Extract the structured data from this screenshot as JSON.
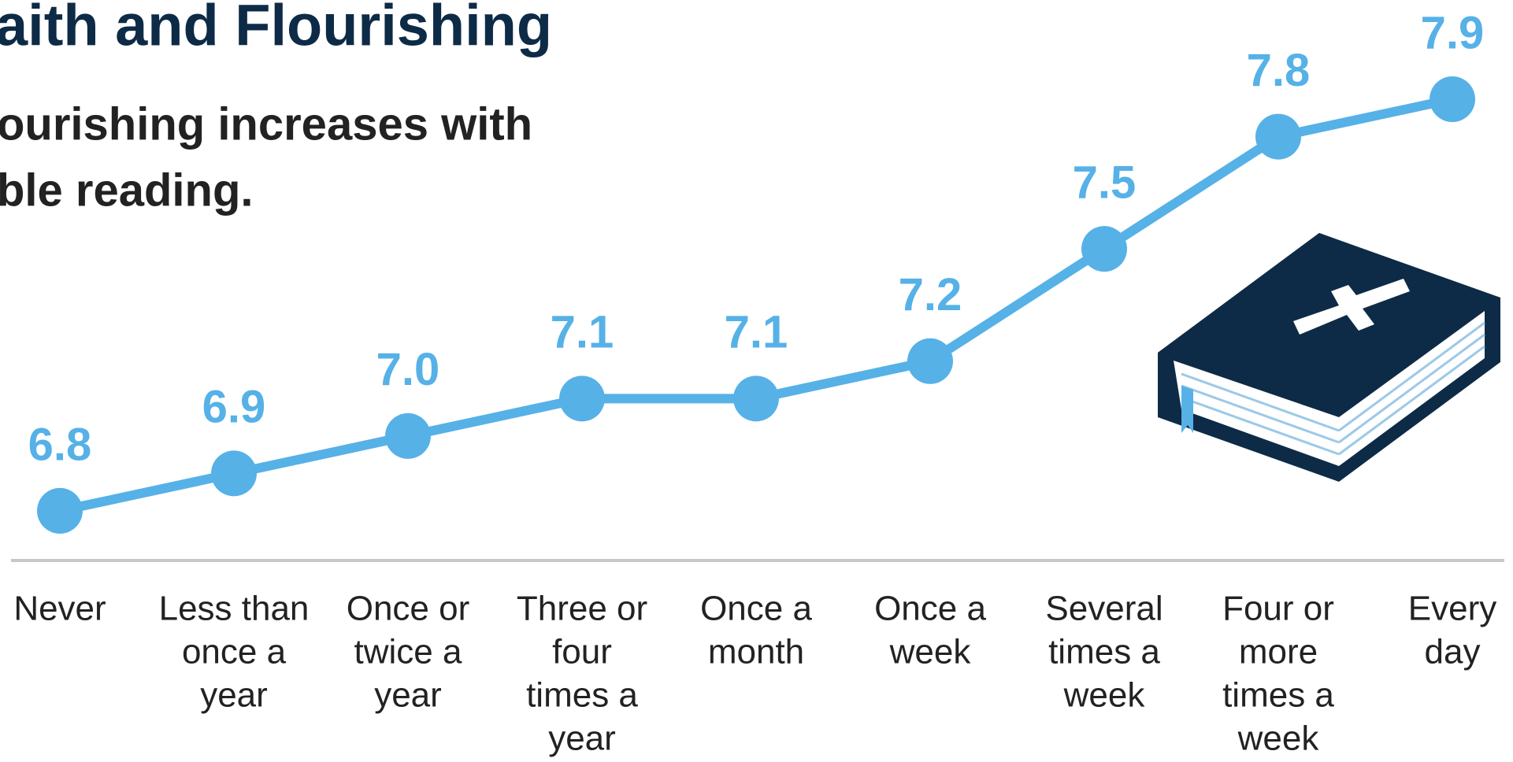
{
  "chart_data": {
    "type": "line",
    "title": "aith and Flourishing",
    "subtitle": [
      "ourishing increases with",
      "ble reading."
    ],
    "categories": [
      [
        "Never"
      ],
      [
        "Less than",
        "once a",
        "year"
      ],
      [
        "Once or",
        "twice a",
        "year"
      ],
      [
        "Three or",
        "four",
        "times a",
        "year"
      ],
      [
        "Once a",
        "month"
      ],
      [
        "Once a",
        "week"
      ],
      [
        "Several",
        "times a",
        "week"
      ],
      [
        "Four or",
        "more",
        "times a",
        "week"
      ],
      [
        "Every",
        "day"
      ]
    ],
    "values": [
      6.8,
      6.9,
      7.0,
      7.1,
      7.1,
      7.2,
      7.5,
      7.8,
      7.9
    ],
    "value_labels": [
      "6.8",
      "6.9",
      "7.0",
      "7.1",
      "7.1",
      "7.2",
      "7.5",
      "7.8",
      "7.9"
    ],
    "color": "#56b1e7",
    "ylim": [
      6.6,
      8.0
    ]
  }
}
